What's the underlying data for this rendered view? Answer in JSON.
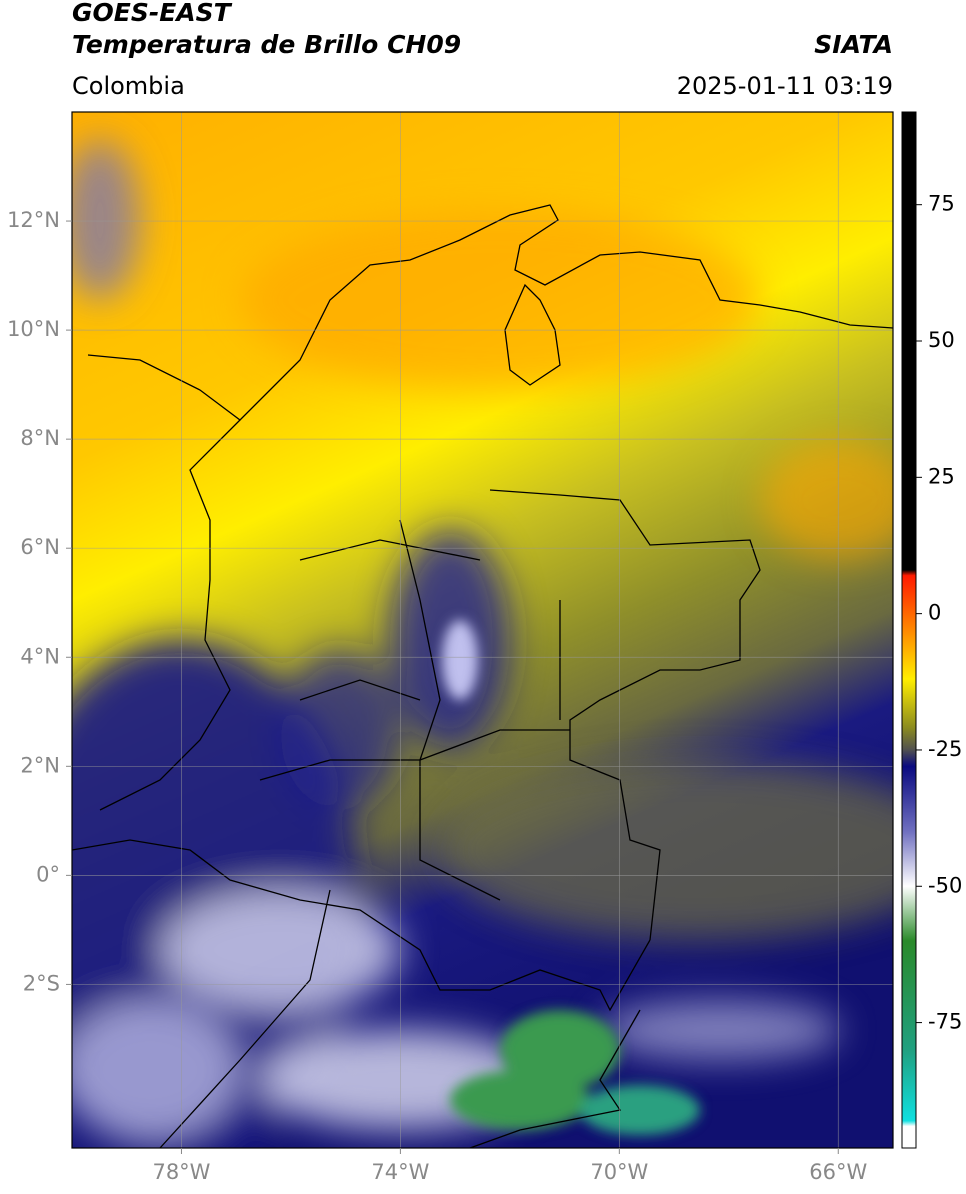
{
  "header": {
    "source": "GOES-EAST",
    "title": "Temperatura de Brillo CH09",
    "credit": "SIATA",
    "region": "Colombia",
    "datetime": "2025-01-11 03:19"
  },
  "map": {
    "type": "satellite-map",
    "xlim": [
      -80,
      -65
    ],
    "ylim": [
      -5,
      14
    ],
    "xticks": [
      {
        "value": -78,
        "label": "78°W"
      },
      {
        "value": -74,
        "label": "74°W"
      },
      {
        "value": -70,
        "label": "70°W"
      },
      {
        "value": -66,
        "label": "66°W"
      }
    ],
    "yticks": [
      {
        "value": 12,
        "label": "12°N"
      },
      {
        "value": 10,
        "label": "10°N"
      },
      {
        "value": 8,
        "label": "8°N"
      },
      {
        "value": 6,
        "label": "6°N"
      },
      {
        "value": 4,
        "label": "4°N"
      },
      {
        "value": 2,
        "label": "2°N"
      },
      {
        "value": 0,
        "label": "0°"
      },
      {
        "value": -2,
        "label": "2°S"
      }
    ],
    "grid": true
  },
  "colorbar": {
    "clim": [
      -98,
      92
    ],
    "ticks": [
      75,
      50,
      25,
      0,
      -25,
      -50,
      -75
    ],
    "colormap": [
      {
        "value": 92,
        "color": "#000000"
      },
      {
        "value": 8,
        "color": "#000000"
      },
      {
        "value": 7,
        "color": "#ff1a00"
      },
      {
        "value": -3,
        "color": "#ff8800"
      },
      {
        "value": -12,
        "color": "#ffee00"
      },
      {
        "value": -21,
        "color": "#8a8a20"
      },
      {
        "value": -25,
        "color": "#505050"
      },
      {
        "value": -28,
        "color": "#0a0a80"
      },
      {
        "value": -40,
        "color": "#7070c0"
      },
      {
        "value": -50,
        "color": "#ffffff"
      },
      {
        "value": -60,
        "color": "#2a8a2a"
      },
      {
        "value": -80,
        "color": "#20a080"
      },
      {
        "value": -93,
        "color": "#10e0e0"
      },
      {
        "value": -94,
        "color": "#ffffff"
      },
      {
        "value": -98,
        "color": "#ffffff"
      }
    ]
  }
}
